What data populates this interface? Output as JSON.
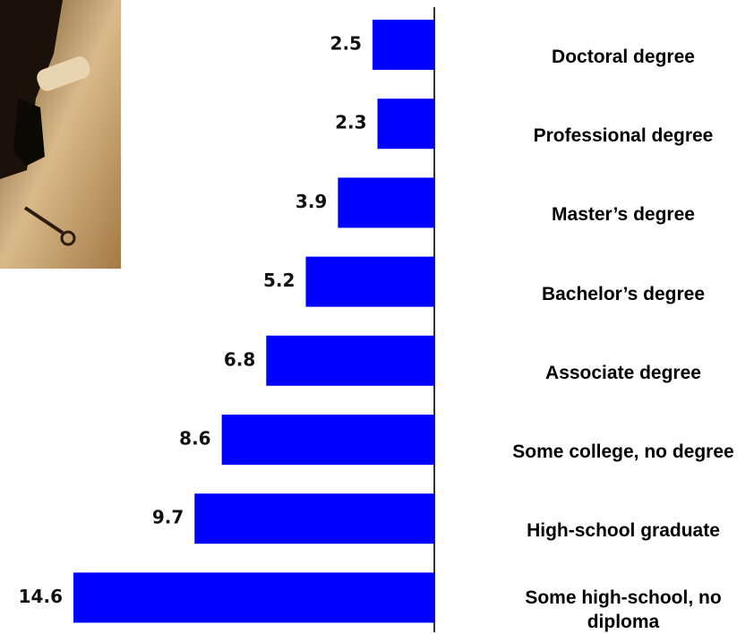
{
  "chart_data": {
    "type": "bar",
    "orientation": "horizontal-left",
    "categories": [
      "Doctoral degree",
      "Professional degree",
      "Master’s degree",
      "Bachelor’s degree",
      "Associate degree",
      "Some college, no degree",
      "High-school graduate",
      "Some high-school, no diploma"
    ],
    "values": [
      2.5,
      2.3,
      3.9,
      5.2,
      6.8,
      8.6,
      9.7,
      14.6
    ],
    "color": "#0000ff"
  }
}
